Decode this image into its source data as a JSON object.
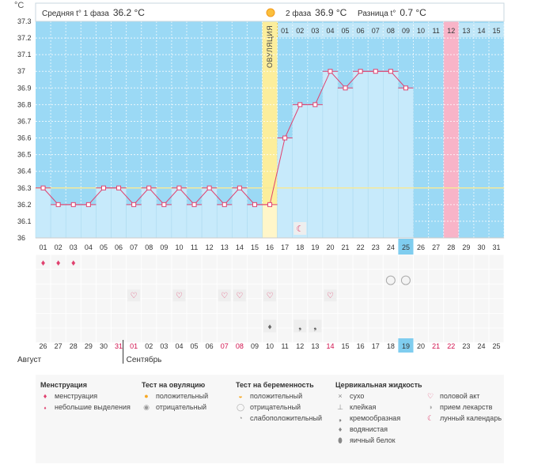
{
  "header": {
    "celsius": "°C",
    "phase1_text": "Средняя t° 1 фаза",
    "phase1_value": "36.2 °C",
    "phase2_text": "2 фаза",
    "phase2_value": "36.9 °C",
    "diff_text": "Разница t°",
    "diff_value": "0.7 °C",
    "ovulation_label": "ОВУЛЯЦИЯ"
  },
  "chart_data": {
    "type": "line",
    "title": "",
    "xlabel": "",
    "ylabel": "°C",
    "ylim": [
      36,
      37.3
    ],
    "y_ticks": [
      "37.3",
      "37.2",
      "37.1",
      "37",
      "36.9",
      "36.8",
      "36.7",
      "36.6",
      "36.5",
      "36.4",
      "36.3",
      "36.2",
      "36.1",
      "36"
    ],
    "cycle_days": [
      "01",
      "02",
      "03",
      "04",
      "05",
      "06",
      "07",
      "08",
      "09",
      "10",
      "11",
      "12",
      "13",
      "14",
      "15",
      "16",
      "17",
      "18",
      "19",
      "20",
      "21",
      "22",
      "23",
      "24",
      "25",
      "26",
      "27",
      "28",
      "29",
      "30",
      "31"
    ],
    "phase2_days": [
      "01",
      "02",
      "03",
      "04",
      "05",
      "06",
      "07",
      "08",
      "09",
      "10",
      "11",
      "12",
      "13",
      "14",
      "15"
    ],
    "calendar_days": [
      "26",
      "27",
      "28",
      "29",
      "30",
      "31",
      "01",
      "02",
      "03",
      "04",
      "05",
      "06",
      "07",
      "08",
      "09",
      "10",
      "11",
      "12",
      "13",
      "14",
      "15",
      "16",
      "17",
      "18",
      "19",
      "20",
      "21",
      "22",
      "23",
      "24",
      "25"
    ],
    "months": [
      "Август",
      "Сентябрь"
    ],
    "temperatures": [
      36.3,
      36.2,
      36.2,
      36.2,
      36.3,
      36.3,
      36.2,
      36.3,
      36.2,
      36.3,
      36.2,
      36.3,
      36.2,
      36.3,
      36.2,
      36.2,
      36.6,
      36.8,
      36.8,
      37.0,
      36.9,
      37.0,
      37.0,
      37.0,
      36.9
    ],
    "coverline": 36.3,
    "ovulation_day": 16,
    "current_day": 25,
    "expected_period_day": 28,
    "menstruation_days": [
      1,
      2,
      3
    ],
    "intercourse_days": [
      7,
      10,
      13,
      14,
      16,
      20
    ],
    "negative_pregnancy_test_days": [
      24,
      25
    ],
    "lunar_calendar_day": 18,
    "cervical_fluid": [
      {
        "day": 16,
        "type": "водянистая"
      },
      {
        "day": 18,
        "type": "кремообразная"
      },
      {
        "day": 19,
        "type": "кремообразная"
      }
    ],
    "colors": {
      "phase": "#9bd9f5",
      "bar": "#c7eafb",
      "ovulation": "#fcee9c",
      "period": "#f8b4c8",
      "line": "#e0416f",
      "today": "#7fcdef",
      "weekend": "#d0114d"
    }
  },
  "legend": {
    "menstruation": {
      "title": "Менструация",
      "items": [
        "менструация",
        "небольшие выделения"
      ]
    },
    "ovulation_test": {
      "title": "Тест на овуляцию",
      "items": [
        "положительный",
        "отрицательный"
      ]
    },
    "pregnancy_test": {
      "title": "Тест на беременность",
      "items": [
        "положительный",
        "отрицательный",
        "слабоположительный"
      ]
    },
    "cervical_fluid": {
      "title": "Цервикальная жидкость",
      "items": [
        "сухо",
        "клейкая",
        "кремообразная",
        "водянистая",
        "яичный белок"
      ]
    },
    "other": {
      "items": [
        "половой акт",
        "прием лекарств",
        "лунный календарь"
      ]
    }
  }
}
